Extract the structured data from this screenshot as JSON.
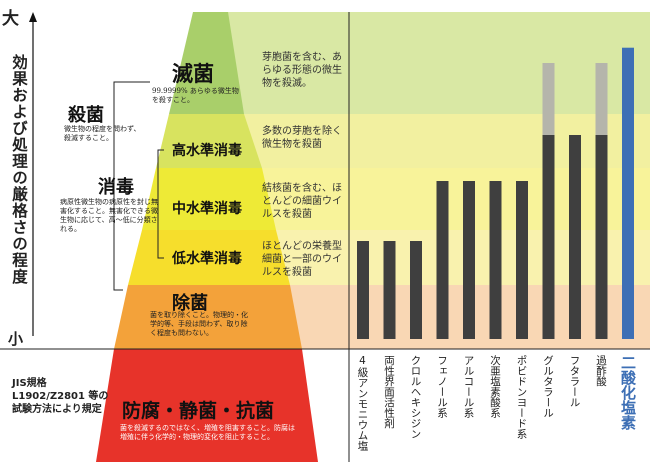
{
  "axis": {
    "top": "大",
    "bottom": "小",
    "label": "効果および処理の厳格さの程度"
  },
  "levels": {
    "sterilization": {
      "title": "滅菌",
      "note": "99.9999% あらゆる微生物を殺すこと。",
      "desc": "芽胞菌を含む、あらゆる形態の微生物を殺滅。"
    },
    "bactericidal": {
      "title": "殺菌",
      "note": "微生物の程度を問わず、殺滅すること。"
    },
    "disinfection": {
      "title": "消毒",
      "note": "病原性微生物の病原性を封じ無害化すること。無害化できる微生物に応じて、高～低に分類される。"
    },
    "high": {
      "title": "高水準消毒",
      "desc": "多数の芽胞を除く微生物を殺菌"
    },
    "mid": {
      "title": "中水準消毒",
      "desc": "結核菌を含む、ほとんどの細菌ウイルスを殺菌"
    },
    "low": {
      "title": "低水準消毒",
      "desc": "ほとんどの栄養型細菌と一部のウイルスを殺菌"
    },
    "removal": {
      "title": "除菌",
      "note": "菌を取り除くこと。物理的・化学的等、手段は問わず、取り除く程度も問わない。"
    },
    "preservation": {
      "title": "防腐・静菌・抗菌",
      "note": "菌を殺滅するのではなく、増殖を阻害すること。防腐は増殖に伴う化学的・物理的変化を阻止すること。"
    },
    "jis": "JIS規格 L1902/Z2801 等の試験方法により規定"
  },
  "chart_data": {
    "type": "bar",
    "categories": [
      "4級アンモニウム塩",
      "両性界面活性剤",
      "クロルヘキシジン",
      "フェノール系",
      "アルコール系",
      "次亜塩素酸系",
      "ポビドンヨード系",
      "グルタラール",
      "フタラール",
      "過酢酸",
      "二酸化塩素"
    ],
    "level_scale": [
      "除菌",
      "低水準消毒",
      "中水準消毒",
      "高水準消毒",
      "滅菌"
    ],
    "values": [
      2,
      2,
      2,
      3,
      3,
      3,
      3,
      4,
      4,
      4,
      5.3
    ],
    "extended_to": [
      null,
      null,
      null,
      null,
      null,
      null,
      null,
      5,
      null,
      5,
      null
    ],
    "highlight_category": "二酸化塩素",
    "colors": {
      "bar": "#3f3f3f",
      "extension": "#b5b5ab",
      "highlight": "#3d6fb5",
      "highlight_label": "#3d6fb5"
    }
  }
}
